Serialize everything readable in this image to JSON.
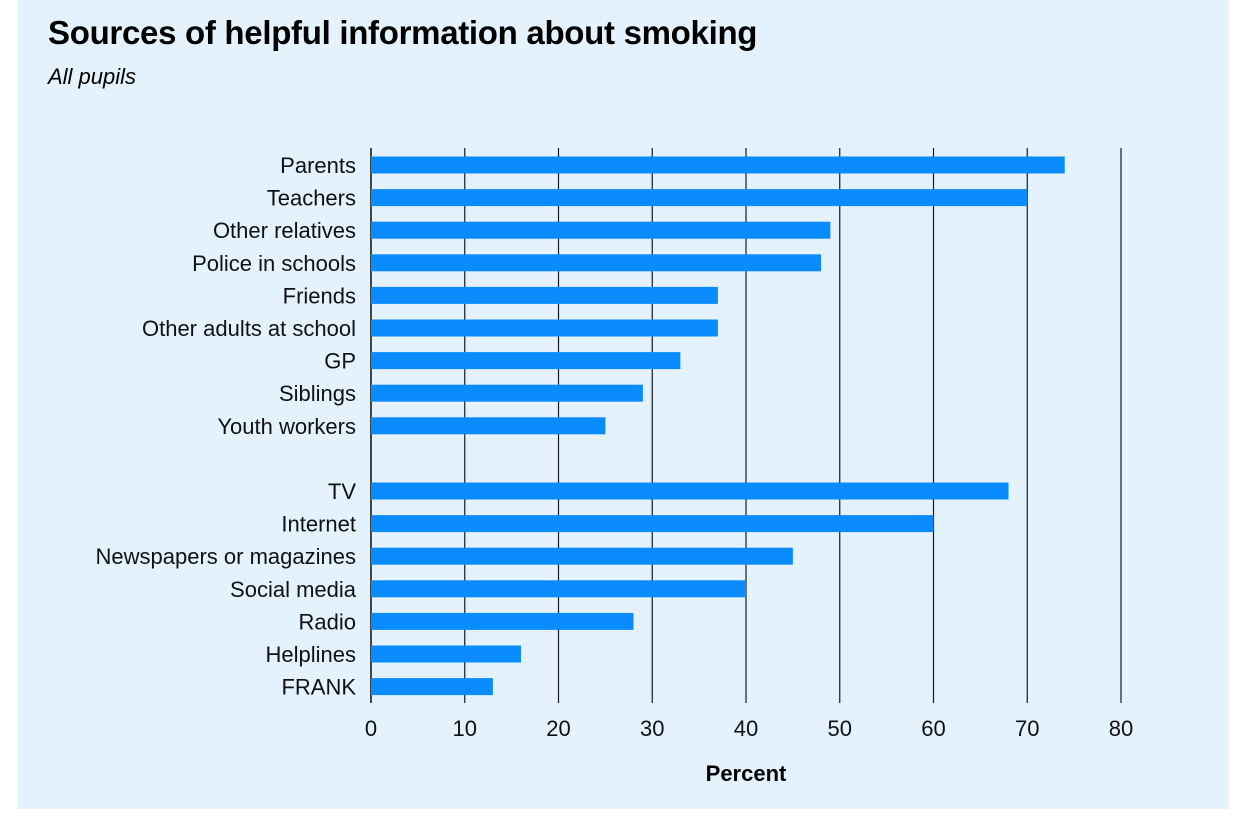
{
  "chart_data": {
    "type": "bar",
    "orientation": "horizontal",
    "title": "Sources of helpful information about smoking",
    "subtitle": "All pupils",
    "xlabel": "Percent",
    "ylabel": "",
    "xlim": [
      0,
      80
    ],
    "xticks": [
      0,
      10,
      20,
      30,
      40,
      50,
      60,
      70,
      80
    ],
    "grid": "vertical",
    "bar_color": "#0a8cff",
    "background": "#e3f2fd",
    "groups": [
      {
        "categories": [
          "Parents",
          "Teachers",
          "Other relatives",
          "Police in schools",
          "Friends",
          "Other adults at school",
          "GP",
          "Siblings",
          "Youth workers"
        ],
        "values": [
          74,
          70,
          49,
          48,
          37,
          37,
          33,
          29,
          25
        ]
      },
      {
        "categories": [
          "TV",
          "Internet",
          "Newspapers or magazines",
          "Social media",
          "Radio",
          "Helplines",
          "FRANK"
        ],
        "values": [
          68,
          60,
          45,
          40,
          28,
          16,
          13
        ]
      }
    ]
  }
}
